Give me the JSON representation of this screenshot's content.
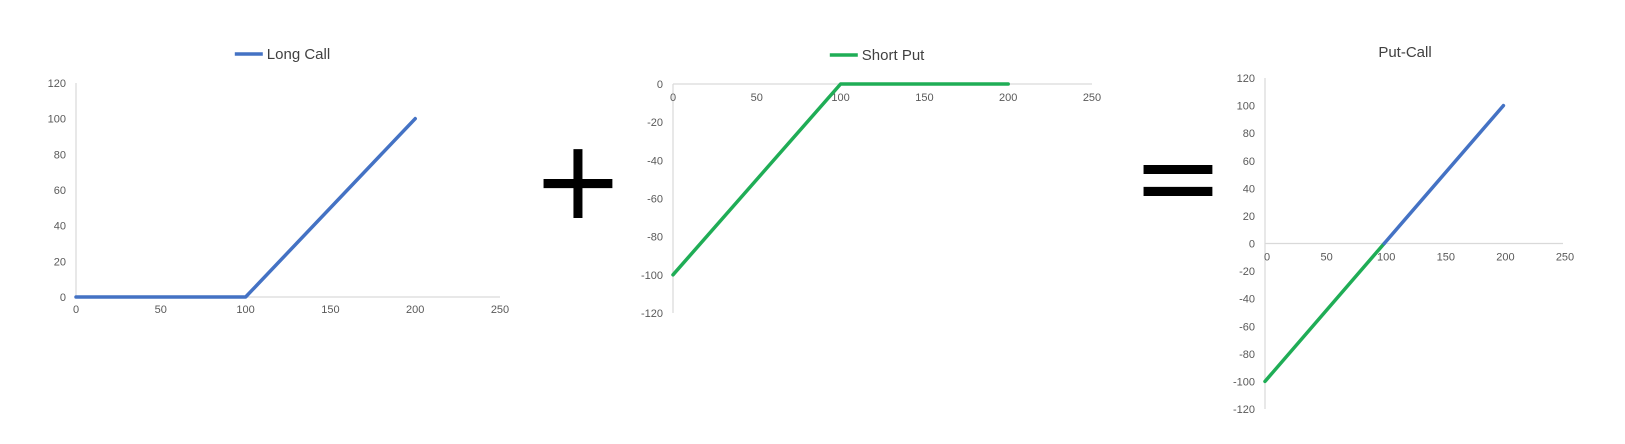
{
  "colors": {
    "long_call": "#4472c4",
    "short_put": "#1fad56",
    "operator": "#000000"
  },
  "operators": {
    "plus": "+",
    "equals": "="
  },
  "chart_data": [
    {
      "type": "line",
      "legend_label": "Long Call",
      "legend_placement": "top",
      "xlim": [
        0,
        250
      ],
      "ylim": [
        0,
        120
      ],
      "xticks": [
        0,
        50,
        100,
        150,
        200,
        250
      ],
      "yticks": [
        0,
        20,
        40,
        60,
        80,
        100,
        120
      ],
      "grid": false,
      "series": [
        {
          "name": "Long Call",
          "color": "#4472c4",
          "x": [
            0,
            100,
            200
          ],
          "y": [
            0,
            0,
            100
          ]
        }
      ]
    },
    {
      "type": "line",
      "legend_label": "Short Put",
      "legend_placement": "top",
      "xlim": [
        0,
        250
      ],
      "ylim": [
        -120,
        0
      ],
      "xticks": [
        0,
        50,
        100,
        150,
        200,
        250
      ],
      "yticks": [
        0,
        -20,
        -40,
        -60,
        -80,
        -100,
        -120
      ],
      "grid": false,
      "series": [
        {
          "name": "Short Put",
          "color": "#1fad56",
          "x": [
            0,
            100,
            200
          ],
          "y": [
            -100,
            0,
            0
          ]
        }
      ]
    },
    {
      "type": "line",
      "title": "Put-Call",
      "xlim": [
        0,
        250
      ],
      "ylim": [
        -120,
        120
      ],
      "xticks": [
        0,
        50,
        100,
        150,
        200,
        250
      ],
      "yticks": [
        120,
        100,
        80,
        60,
        40,
        20,
        0,
        -20,
        -40,
        -60,
        -80,
        -100,
        -120
      ],
      "grid": false,
      "series": [
        {
          "color": "#1fad56",
          "x": [
            0,
            100
          ],
          "y": [
            -100,
            0
          ]
        },
        {
          "color": "#4472c4",
          "x": [
            100,
            200
          ],
          "y": [
            0,
            100
          ]
        }
      ]
    }
  ]
}
